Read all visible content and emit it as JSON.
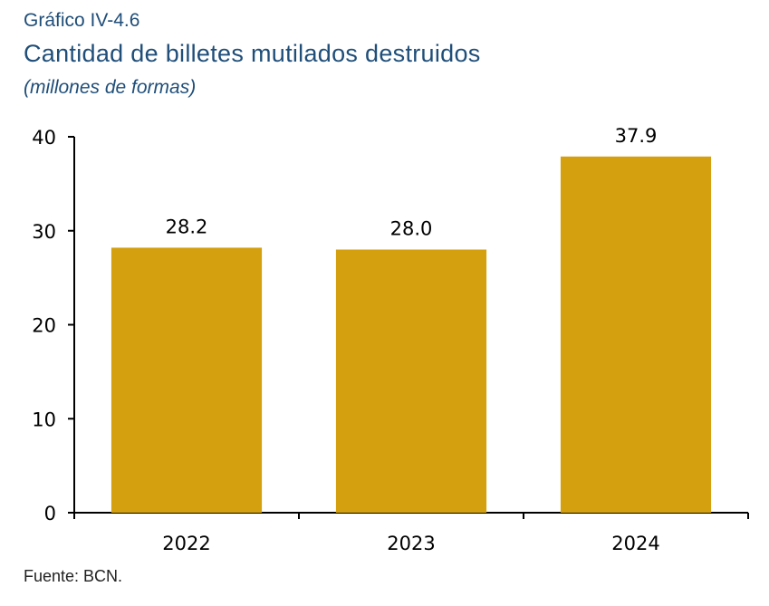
{
  "chart_label": "Gráfico IV-4.6",
  "source_note": "Fuente: BCN.",
  "chart_data": {
    "type": "bar",
    "title": "Cantidad de billetes mutilados destruidos",
    "subtitle": "(millones de formas)",
    "categories": [
      "2022",
      "2023",
      "2024"
    ],
    "values": [
      28.2,
      28.0,
      37.9
    ],
    "data_labels": [
      "28.2",
      "28.0",
      "37.9"
    ],
    "xlabel": "",
    "ylabel": "",
    "ylim": [
      0,
      40
    ],
    "yticks": [
      0,
      10,
      20,
      30,
      40
    ],
    "grid": false,
    "legend": "none",
    "bar_color": "#d4a010"
  }
}
